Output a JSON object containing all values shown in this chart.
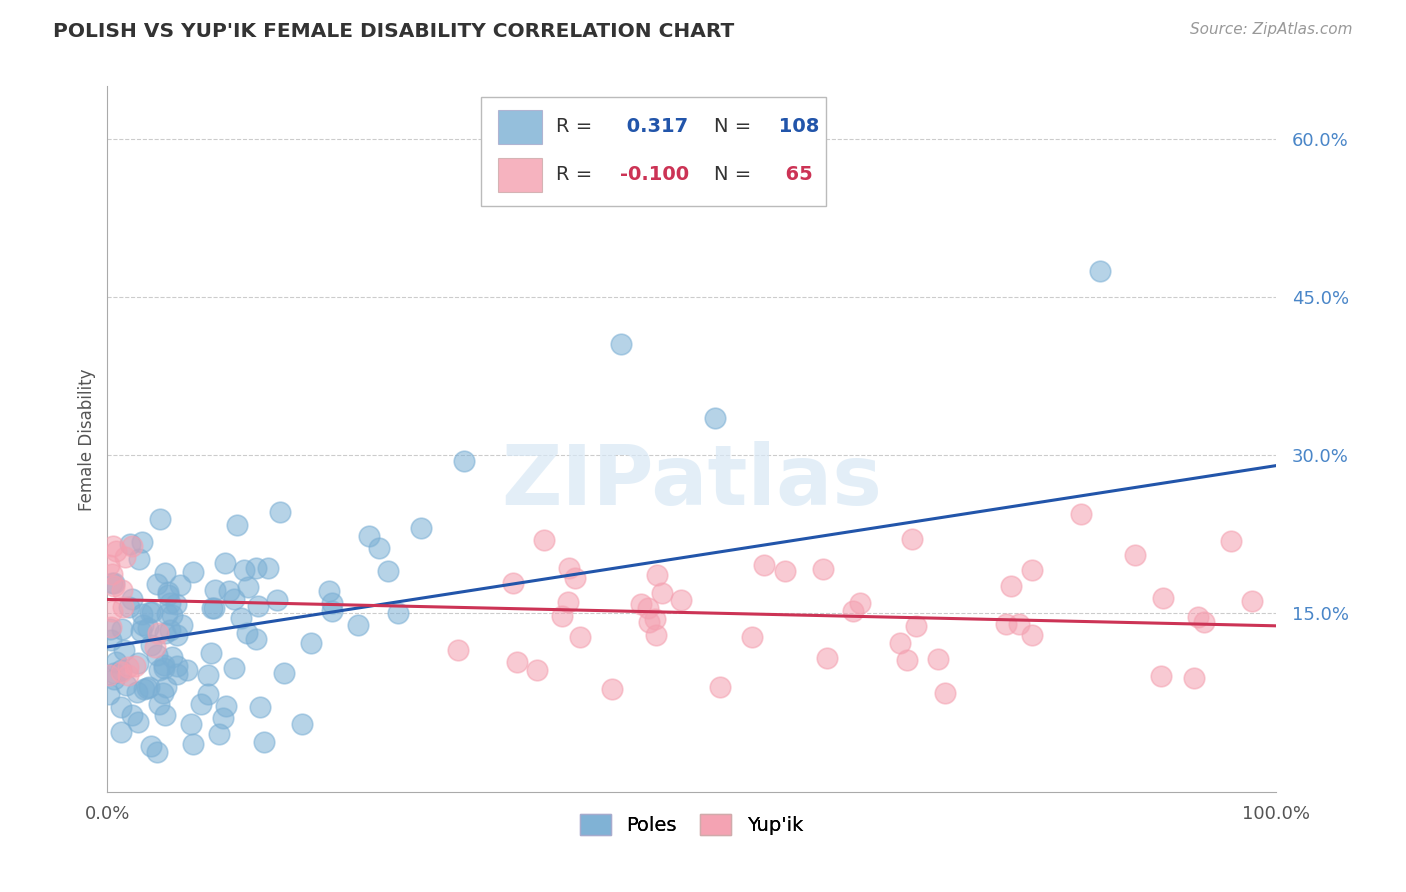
{
  "title": "POLISH VS YUP'IK FEMALE DISABILITY CORRELATION CHART",
  "source": "Source: ZipAtlas.com",
  "ylabel": "Female Disability",
  "background_color": "#ffffff",
  "plot_bg_color": "#ffffff",
  "grid_color": "#cccccc",
  "blue_color": "#7bafd4",
  "pink_color": "#f4a0b0",
  "blue_line_color": "#2255aa",
  "pink_line_color": "#cc3355",
  "R_blue": 0.317,
  "N_blue": 108,
  "R_pink": -0.1,
  "N_pink": 65,
  "x_min": 0.0,
  "x_max": 1.0,
  "y_min": -0.02,
  "y_max": 0.65,
  "yticks": [
    0.15,
    0.3,
    0.45,
    0.6
  ],
  "ytick_labels": [
    "15.0%",
    "30.0%",
    "45.0%",
    "60.0%"
  ],
  "xticks": [
    0.0,
    0.2,
    0.4,
    0.6,
    0.8,
    1.0
  ],
  "xtick_labels": [
    "0.0%",
    "",
    "",
    "",
    "",
    "100.0%"
  ],
  "watermark": "ZIPatlas",
  "legend_labels": [
    "Poles",
    "Yup'ik"
  ],
  "blue_line_y_start": 0.118,
  "blue_line_y_end": 0.29,
  "pink_line_y_start": 0.163,
  "pink_line_y_end": 0.138
}
